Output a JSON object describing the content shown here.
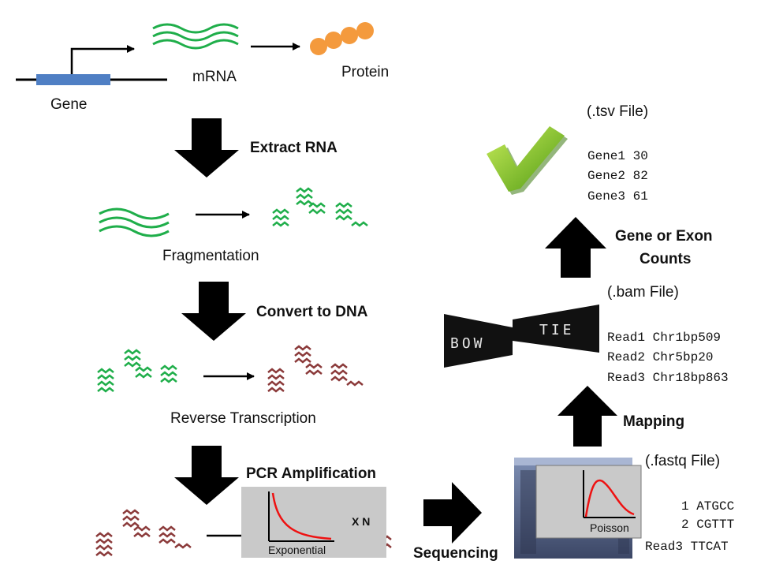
{
  "colors": {
    "rna_green": "#1fae4a",
    "dna_red": "#8b3a3a",
    "gene_blue": "#4f7fc4",
    "protein_orange": "#f49a3d",
    "arrow_black": "#000000",
    "curve_red": "#ee1111",
    "plot_bg": "#c9c9c9",
    "check_green": "#7fc32a"
  },
  "labels": {
    "gene": "Gene",
    "mrna": "mRNA",
    "protein": "Protein",
    "extract_rna": "Extract RNA",
    "fragmentation": "Fragmentation",
    "convert_dna": "Convert to DNA",
    "reverse_transcription": "Reverse Transcription",
    "pcr": "PCR Amplification",
    "exponential": "Exponential",
    "times_n": "X N",
    "sequencing": "Sequencing",
    "poisson": "Poisson",
    "mapping": "Mapping",
    "gene_exon_counts_1": "Gene or Exon",
    "gene_exon_counts_2": "Counts",
    "bowtie_left": "BOW",
    "bowtie_right": "TIE"
  },
  "tsv": {
    "title": "(.tsv File)",
    "rows": [
      "Gene1 30",
      "Gene2 82",
      "Gene3 61"
    ]
  },
  "bam": {
    "title": "(.bam File)",
    "rows": [
      "Read1 Chr1bp509",
      "Read2 Chr5bp20",
      "Read3 Chr18bp863"
    ]
  },
  "fastq": {
    "title": "(.fastq File)",
    "rows": [
      "1 ATGCC",
      "2 CGTTT",
      "Read3 TTCAT"
    ]
  }
}
